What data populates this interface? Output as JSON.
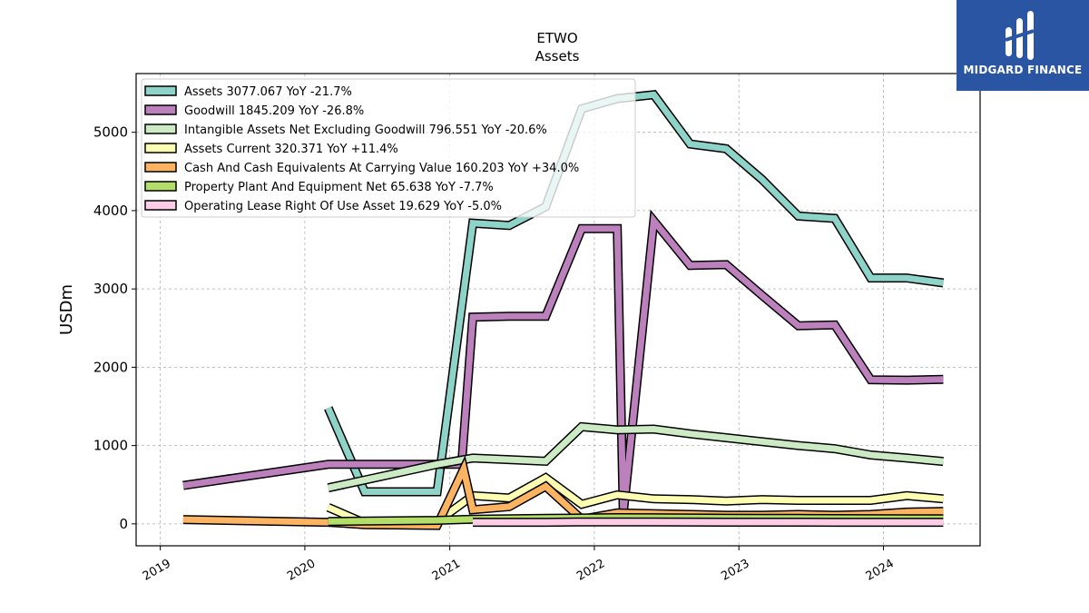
{
  "logo": {
    "text": "MIDGARD FINANCE",
    "icon": "midgard-logo-icon",
    "color": "#2a55a3"
  },
  "chart_data": {
    "type": "line",
    "title": "ETWO",
    "subtitle": "Assets",
    "ylabel": "USDm",
    "xlabel": "",
    "x_range": [
      "2018-11-01",
      "2024-09-01"
    ],
    "ylim": [
      -280,
      5750
    ],
    "x_ticks": [
      "2019",
      "2020",
      "2021",
      "2022",
      "2023",
      "2024"
    ],
    "y_ticks": [
      0,
      1000,
      2000,
      3000,
      4000,
      5000
    ],
    "grid": true,
    "legend_position": "top-left",
    "series": [
      {
        "name": "Assets",
        "legend": "Assets  3077.067 YoY -21.7%",
        "color": "#8dd3c7",
        "width": 7,
        "points": [
          [
            "2020-02-29",
            1480
          ],
          [
            "2020-05-31",
            410
          ],
          [
            "2020-08-31",
            410
          ],
          [
            "2020-11-30",
            410
          ],
          [
            "2021-02-28",
            3840
          ],
          [
            "2021-05-31",
            3810
          ],
          [
            "2021-08-31",
            4050
          ],
          [
            "2021-11-30",
            5300
          ],
          [
            "2022-02-28",
            5430
          ],
          [
            "2022-05-31",
            5480
          ],
          [
            "2022-08-31",
            4850
          ],
          [
            "2022-11-30",
            4790
          ],
          [
            "2023-02-28",
            4400
          ],
          [
            "2023-05-31",
            3930
          ],
          [
            "2023-08-31",
            3900
          ],
          [
            "2023-11-30",
            3140
          ],
          [
            "2024-02-29",
            3140
          ],
          [
            "2024-05-31",
            3077
          ]
        ]
      },
      {
        "name": "Goodwill",
        "legend": "Goodwill  1845.209 YoY -26.8%",
        "color": "#bc80bd",
        "width": 7,
        "points": [
          [
            "2019-02-28",
            490
          ],
          [
            "2020-02-29",
            760
          ],
          [
            "2020-05-31",
            760
          ],
          [
            "2020-08-31",
            760
          ],
          [
            "2020-11-30",
            760
          ],
          [
            "2021-01-31",
            760
          ],
          [
            "2021-02-28",
            2640
          ],
          [
            "2021-05-31",
            2650
          ],
          [
            "2021-08-31",
            2650
          ],
          [
            "2021-11-30",
            3770
          ],
          [
            "2022-02-28",
            3770
          ],
          [
            "2022-03-15",
            130
          ],
          [
            "2022-05-31",
            3870
          ],
          [
            "2022-08-31",
            3300
          ],
          [
            "2022-11-30",
            3310
          ],
          [
            "2023-02-28",
            2920
          ],
          [
            "2023-05-31",
            2530
          ],
          [
            "2023-08-31",
            2540
          ],
          [
            "2023-11-30",
            1840
          ],
          [
            "2024-02-29",
            1835
          ],
          [
            "2024-05-31",
            1845
          ]
        ]
      },
      {
        "name": "Intangible Assets Net Excluding Goodwill",
        "legend": "Intangible Assets Net Excluding Goodwill  796.551 YoY -20.6%",
        "color": "#ccebc5",
        "width": 7,
        "points": [
          [
            "2020-02-29",
            460
          ],
          [
            "2020-05-31",
            560
          ],
          [
            "2020-08-31",
            660
          ],
          [
            "2020-11-30",
            760
          ],
          [
            "2021-02-28",
            840
          ],
          [
            "2021-05-31",
            820
          ],
          [
            "2021-08-31",
            800
          ],
          [
            "2021-11-30",
            1240
          ],
          [
            "2022-02-28",
            1200
          ],
          [
            "2022-05-31",
            1210
          ],
          [
            "2022-08-31",
            1150
          ],
          [
            "2022-11-30",
            1100
          ],
          [
            "2023-02-28",
            1050
          ],
          [
            "2023-05-31",
            1000
          ],
          [
            "2023-08-31",
            960
          ],
          [
            "2023-11-30",
            880
          ],
          [
            "2024-02-29",
            840
          ],
          [
            "2024-05-31",
            797
          ]
        ]
      },
      {
        "name": "Assets Current",
        "legend": "Assets Current  320.371 YoY +11.4%",
        "color": "#ffffb3",
        "width": 7,
        "points": [
          [
            "2020-02-29",
            210
          ],
          [
            "2020-05-31",
            10
          ],
          [
            "2020-08-31",
            20
          ],
          [
            "2020-11-30",
            30
          ],
          [
            "2021-02-28",
            360
          ],
          [
            "2021-05-31",
            330
          ],
          [
            "2021-08-31",
            590
          ],
          [
            "2021-11-30",
            250
          ],
          [
            "2022-02-28",
            370
          ],
          [
            "2022-05-31",
            320
          ],
          [
            "2022-08-31",
            310
          ],
          [
            "2022-11-30",
            290
          ],
          [
            "2023-02-28",
            310
          ],
          [
            "2023-05-31",
            300
          ],
          [
            "2023-08-31",
            300
          ],
          [
            "2023-11-30",
            300
          ],
          [
            "2024-02-29",
            360
          ],
          [
            "2024-05-31",
            320
          ]
        ]
      },
      {
        "name": "Cash And Cash Equivalents At Carrying Value",
        "legend": "Cash And Cash Equivalents At Carrying Value  160.203 YoY +34.0%",
        "color": "#fdb462",
        "width": 7,
        "points": [
          [
            "2019-02-28",
            55
          ],
          [
            "2020-02-29",
            20
          ],
          [
            "2020-05-31",
            -10
          ],
          [
            "2020-08-31",
            -15
          ],
          [
            "2020-11-30",
            -20
          ],
          [
            "2021-02-05",
            700
          ],
          [
            "2021-02-28",
            180
          ],
          [
            "2021-05-31",
            220
          ],
          [
            "2021-08-31",
            480
          ],
          [
            "2021-11-30",
            60
          ],
          [
            "2022-02-28",
            140
          ],
          [
            "2022-05-31",
            130
          ],
          [
            "2022-08-31",
            120
          ],
          [
            "2022-11-30",
            110
          ],
          [
            "2023-02-28",
            110
          ],
          [
            "2023-05-31",
            120
          ],
          [
            "2023-08-31",
            110
          ],
          [
            "2023-11-30",
            120
          ],
          [
            "2024-02-29",
            150
          ],
          [
            "2024-05-31",
            160
          ]
        ]
      },
      {
        "name": "Property Plant And Equipment Net",
        "legend": "Property Plant And Equipment Net  65.638 YoY -7.7%",
        "color": "#b3de69",
        "width": 7,
        "points": [
          [
            "2020-02-29",
            30
          ],
          [
            "2020-05-31",
            35
          ],
          [
            "2020-08-31",
            40
          ],
          [
            "2020-11-30",
            45
          ],
          [
            "2021-02-28",
            60
          ],
          [
            "2021-05-31",
            65
          ],
          [
            "2021-08-31",
            70
          ],
          [
            "2021-11-30",
            75
          ],
          [
            "2022-02-28",
            80
          ],
          [
            "2022-05-31",
            78
          ],
          [
            "2022-08-31",
            75
          ],
          [
            "2022-11-30",
            72
          ],
          [
            "2023-02-28",
            71
          ],
          [
            "2023-05-31",
            70
          ],
          [
            "2023-08-31",
            68
          ],
          [
            "2023-11-30",
            67
          ],
          [
            "2024-02-29",
            66
          ],
          [
            "2024-05-31",
            66
          ]
        ]
      },
      {
        "name": "Operating Lease Right Of Use Asset",
        "legend": "Operating Lease Right Of Use Asset  19.629 YoY -5.0%",
        "color": "#fccde5",
        "width": 7,
        "points": [
          [
            "2021-02-28",
            20
          ],
          [
            "2021-05-31",
            20
          ],
          [
            "2021-08-31",
            20
          ],
          [
            "2021-11-30",
            25
          ],
          [
            "2022-02-28",
            25
          ],
          [
            "2022-05-31",
            25
          ],
          [
            "2022-08-31",
            23
          ],
          [
            "2022-11-30",
            22
          ],
          [
            "2023-02-28",
            21
          ],
          [
            "2023-05-31",
            21
          ],
          [
            "2023-08-31",
            20
          ],
          [
            "2023-11-30",
            20
          ],
          [
            "2024-02-29",
            20
          ],
          [
            "2024-05-31",
            20
          ]
        ]
      }
    ]
  }
}
